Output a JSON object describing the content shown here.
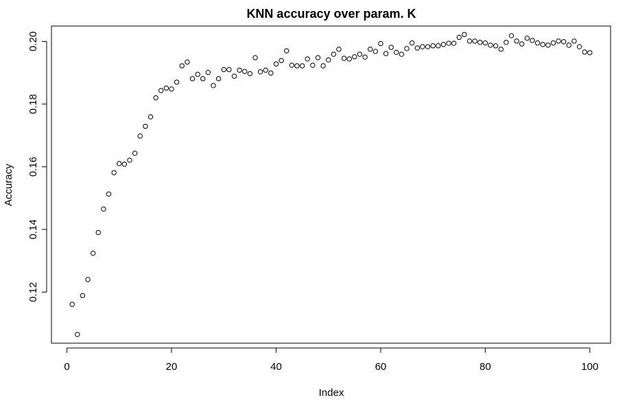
{
  "chart_data": {
    "type": "scatter",
    "title": "KNN accuracy over param. K",
    "xlabel": "Index",
    "ylabel": "Accuracy",
    "xlim": [
      -2.96,
      103.96
    ],
    "ylim": [
      0.1037,
      0.2049
    ],
    "xticks": [
      0,
      20,
      40,
      60,
      80,
      100
    ],
    "xtick_labels": [
      "0",
      "20",
      "40",
      "60",
      "80",
      "100"
    ],
    "yticks": [
      0.12,
      0.14,
      0.16,
      0.18,
      0.2
    ],
    "ytick_labels": [
      "0.12",
      "0.14",
      "0.16",
      "0.18",
      "0.20"
    ],
    "grid": false,
    "legend": "none",
    "point_color": "#000000",
    "x": [
      1,
      2,
      3,
      4,
      5,
      6,
      7,
      8,
      9,
      10,
      11,
      12,
      13,
      14,
      15,
      16,
      17,
      18,
      19,
      20,
      21,
      22,
      23,
      24,
      25,
      26,
      27,
      28,
      29,
      30,
      31,
      32,
      33,
      34,
      35,
      36,
      37,
      38,
      39,
      40,
      41,
      42,
      43,
      44,
      45,
      46,
      47,
      48,
      49,
      50,
      51,
      52,
      53,
      54,
      55,
      56,
      57,
      58,
      59,
      60,
      61,
      62,
      63,
      64,
      65,
      66,
      67,
      68,
      69,
      70,
      71,
      72,
      73,
      74,
      75,
      76,
      77,
      78,
      79,
      80,
      81,
      82,
      83,
      84,
      85,
      86,
      87,
      88,
      89,
      90,
      91,
      92,
      93,
      94,
      95,
      96,
      97,
      98,
      99,
      100
    ],
    "y": [
      0.1161,
      0.1065,
      0.1189,
      0.124,
      0.1324,
      0.139,
      0.1465,
      0.1513,
      0.1581,
      0.161,
      0.1608,
      0.1621,
      0.1643,
      0.1698,
      0.1729,
      0.1759,
      0.182,
      0.1843,
      0.1851,
      0.1848,
      0.187,
      0.1922,
      0.1934,
      0.1881,
      0.1895,
      0.1881,
      0.1901,
      0.1859,
      0.1881,
      0.191,
      0.191,
      0.1889,
      0.1908,
      0.1904,
      0.1897,
      0.1948,
      0.1903,
      0.1908,
      0.1899,
      0.1928,
      0.1939,
      0.197,
      0.1924,
      0.1922,
      0.1922,
      0.1944,
      0.1924,
      0.1948,
      0.1922,
      0.1941,
      0.1959,
      0.1975,
      0.1946,
      0.1944,
      0.1951,
      0.1959,
      0.195,
      0.1975,
      0.1968,
      0.1993,
      0.1961,
      0.1981,
      0.1965,
      0.1959,
      0.1977,
      0.1995,
      0.1979,
      0.1983,
      0.1983,
      0.1986,
      0.1986,
      0.199,
      0.1994,
      0.1994,
      0.2013,
      0.2022,
      0.2001,
      0.2001,
      0.1997,
      0.1995,
      0.1988,
      0.1986,
      0.1975,
      0.1997,
      0.2018,
      0.2001,
      0.1992,
      0.201,
      0.2003,
      0.1995,
      0.199,
      0.1988,
      0.1995,
      0.2001,
      0.1999,
      0.1988,
      0.2001,
      0.1983,
      0.1966,
      0.1964
    ]
  }
}
